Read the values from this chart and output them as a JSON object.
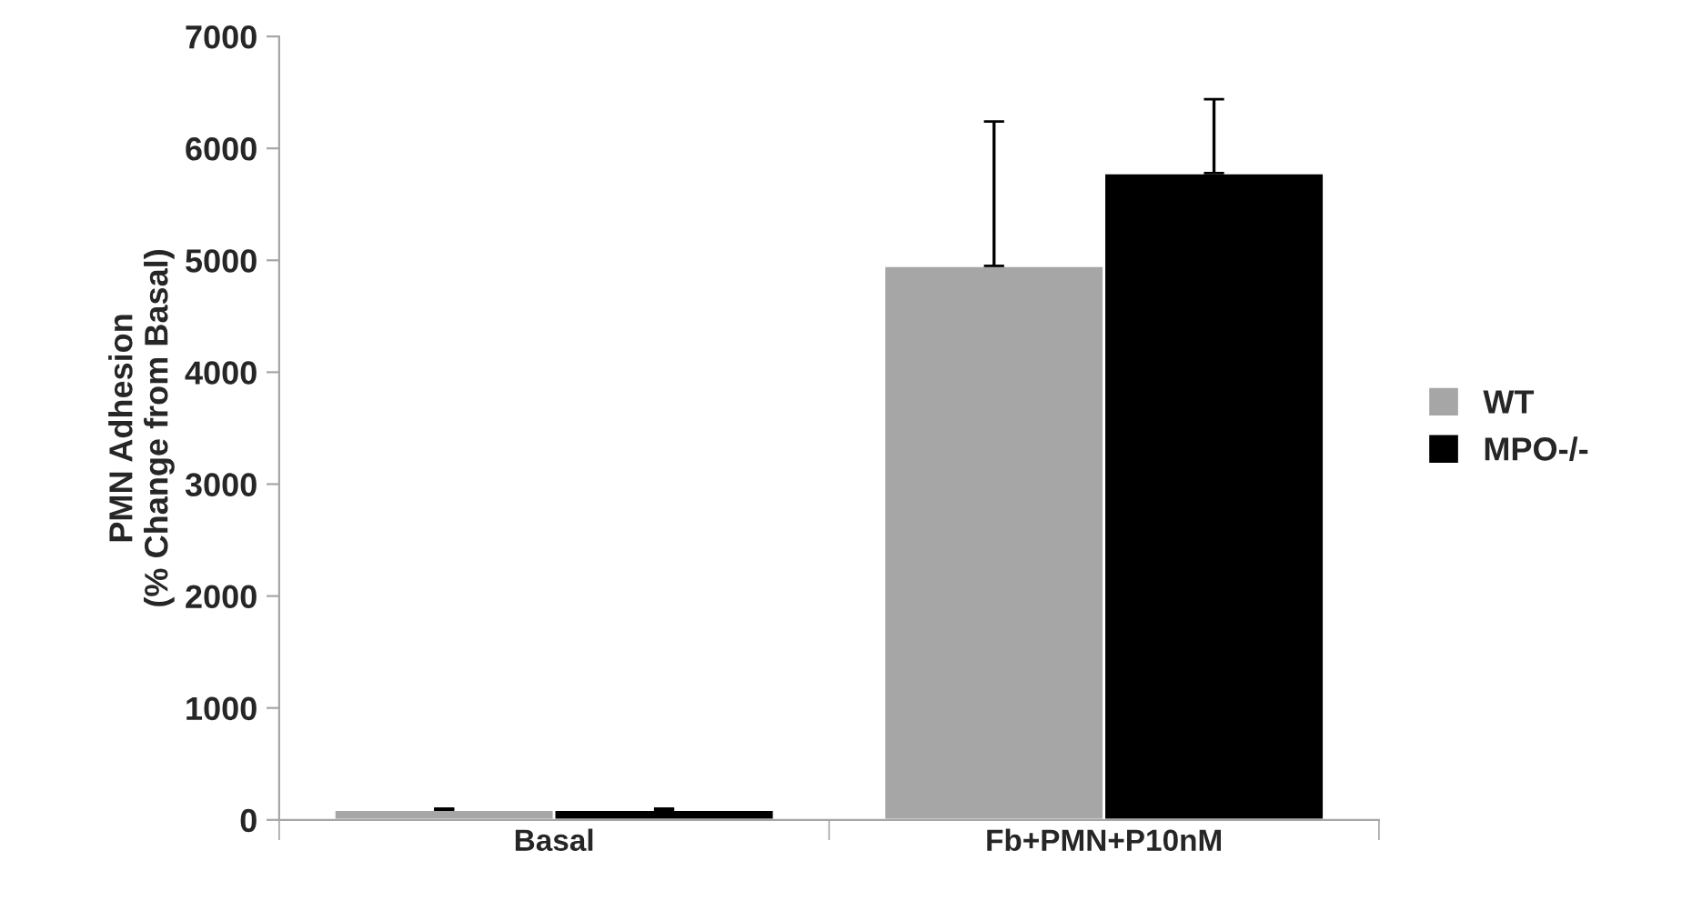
{
  "chart_data": {
    "type": "bar",
    "ylabel": "PMN Adhesion\n(% Change from Basal)",
    "categories": [
      "Basal",
      "Fb+PMN+P10nM"
    ],
    "series": [
      {
        "name": "WT",
        "color": "#a6a6a6",
        "values": [
          90,
          4950
        ],
        "errors": [
          [
            90,
            100
          ],
          [
            4950,
            6240
          ]
        ]
      },
      {
        "name": "MPO-/-",
        "color": "#000000",
        "values": [
          90,
          5780
        ],
        "errors": [
          [
            90,
            100
          ],
          [
            5780,
            6440
          ]
        ]
      }
    ],
    "ylim": [
      0,
      7000
    ],
    "yticks": [
      0,
      1000,
      2000,
      3000,
      4000,
      5000,
      6000,
      7000
    ],
    "grid": false,
    "legend": "right"
  }
}
